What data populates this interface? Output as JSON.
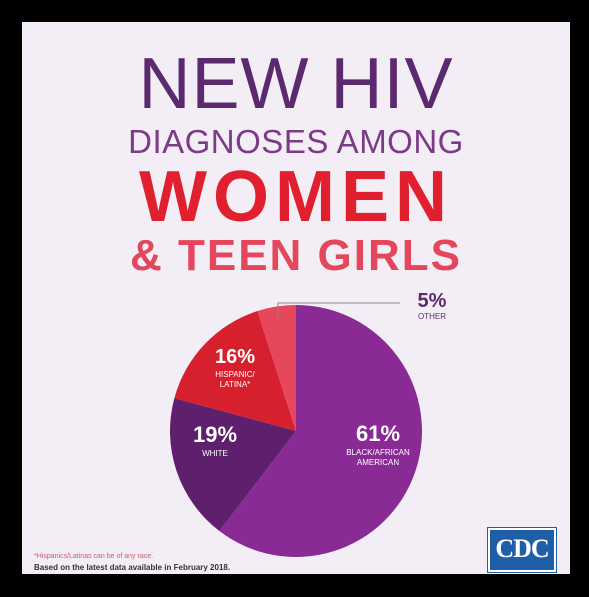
{
  "headline": {
    "line1": "NEW HIV",
    "line2": "DIAGNOSES AMONG",
    "line3": "WOMEN",
    "line4": "& TEEN GIRLS"
  },
  "chart_data": {
    "type": "pie",
    "slices": [
      {
        "pct": "61%",
        "value": 61,
        "label_lines": [
          "BLACK/AFRICAN",
          "AMERICAN"
        ],
        "color": "#8a2b95"
      },
      {
        "pct": "19%",
        "value": 19,
        "label_lines": [
          "WHITE"
        ],
        "color": "#5e1f6c"
      },
      {
        "pct": "16%",
        "value": 16,
        "label_lines": [
          "HISPANIC/",
          "LATINA*"
        ],
        "color": "#d6202e"
      },
      {
        "pct": "5%",
        "value": 5,
        "label_lines": [
          "OTHER"
        ],
        "color": "#e5485a"
      }
    ]
  },
  "footnote": "*Hispanics/Latinas can be of any race.",
  "based_on": "Based on the latest data available in February 2018.",
  "logo_text": "CDC",
  "colors": {
    "background": "#f3eef5",
    "title_purple": "#5b2a6e",
    "title_red": "#e0202e"
  }
}
